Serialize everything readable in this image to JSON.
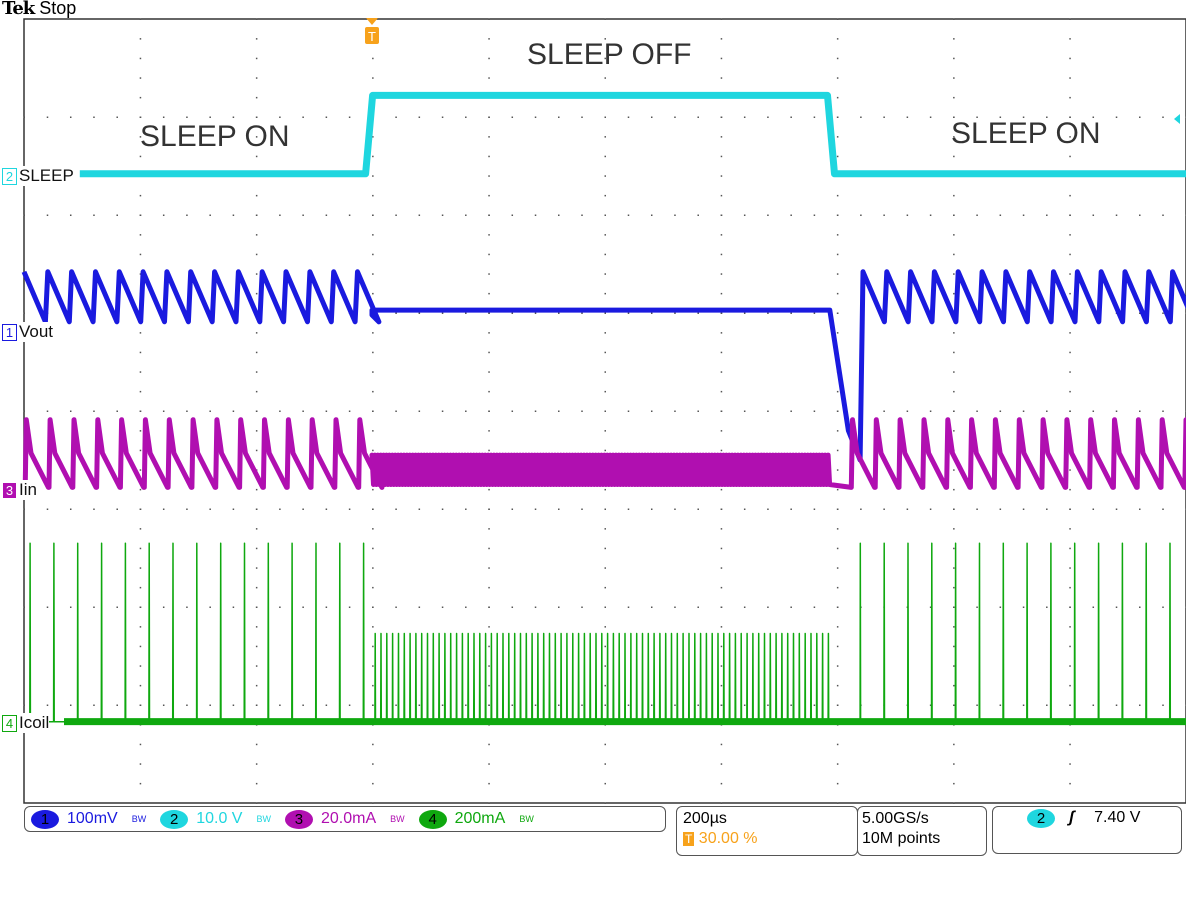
{
  "header": {
    "brand": "Tek",
    "status": "Stop"
  },
  "annotations": [
    "SLEEP ON",
    "SLEEP OFF",
    "SLEEP ON"
  ],
  "trigger_marker": "T",
  "channels": [
    {
      "num": "1",
      "label": "Vout",
      "scale": "100mV",
      "color": "#1a1adf",
      "bw": "BW"
    },
    {
      "num": "2",
      "label": "SLEEP",
      "scale": "10.0 V",
      "color": "#1fd6df",
      "bw": "BW"
    },
    {
      "num": "3",
      "label": "Iin",
      "scale": "20.0mA",
      "color": "#b00fb0",
      "bw": "BW"
    },
    {
      "num": "4",
      "label": "Icoil",
      "scale": "200mA",
      "color": "#0fa80f",
      "bw": "BW"
    }
  ],
  "timebase": {
    "scale": "200µs",
    "trigger_pos": "30.00 %",
    "trigger_icon": "T"
  },
  "acq": {
    "rate": "5.00GS/s",
    "points": "10M points"
  },
  "trigger": {
    "channel": "2",
    "slope": "ʃ",
    "level": "7.40 V"
  },
  "chart_data": {
    "type": "line",
    "x_unit": "µs",
    "xlim": [
      0,
      2000
    ],
    "y_unit": "divisions",
    "ylim": [
      -4,
      4
    ],
    "grid": true,
    "sleep_off_interval_us": [
      594,
      1389
    ],
    "series": [
      {
        "name": "SLEEP",
        "channel": "2",
        "low_div": 2.42,
        "high_div": 3.22,
        "start_us": 96
      },
      {
        "name": "Vout",
        "channel": "1",
        "sawtooth_top_div": 1.42,
        "sawtooth_bottom_div": 0.91,
        "period_on_us": 41,
        "flat_div": 0.98,
        "dip_min_div": -0.5
      },
      {
        "name": "Iin",
        "channel": "3",
        "baseline_div": -0.78,
        "peak_div": -0.09,
        "period_on_us": 41,
        "off_band_div": [
          -0.75,
          -0.45
        ]
      },
      {
        "name": "Icoil",
        "channel": "4",
        "baseline_div": -3.17,
        "peak_on_div": -1.35,
        "period_on_us": 41,
        "peak_off_div": -2.27,
        "period_off_us": 10
      }
    ]
  }
}
